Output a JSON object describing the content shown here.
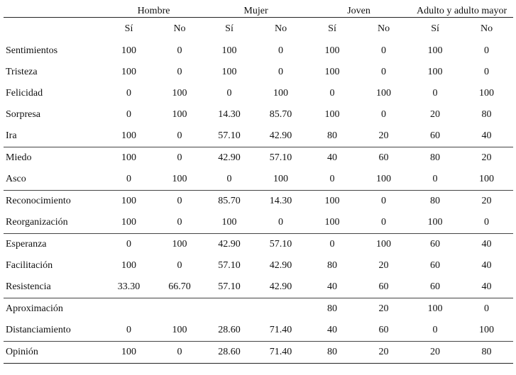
{
  "groups": [
    "Hombre",
    "Mujer",
    "Joven",
    "Adulto y adulto mayor"
  ],
  "subheaders": [
    "Sí",
    "No",
    "Sí",
    "No",
    "Sí",
    "No",
    "Sí",
    "No"
  ],
  "rows": [
    {
      "label": "Sentimientos",
      "values": [
        "100",
        "0",
        "100",
        "0",
        "100",
        "0",
        "100",
        "0"
      ]
    },
    {
      "label": "Tristeza",
      "values": [
        "100",
        "0",
        "100",
        "0",
        "100",
        "0",
        "100",
        "0"
      ]
    },
    {
      "label": "Felicidad",
      "values": [
        "0",
        "100",
        "0",
        "100",
        "0",
        "100",
        "0",
        "100"
      ]
    },
    {
      "label": "Sorpresa",
      "values": [
        "0",
        "100",
        "14.30",
        "85.70",
        "100",
        "0",
        "20",
        "80"
      ]
    },
    {
      "label": "Ira",
      "values": [
        "100",
        "0",
        "57.10",
        "42.90",
        "80",
        "20",
        "60",
        "40"
      ]
    },
    {
      "label": "Miedo",
      "values": [
        "100",
        "0",
        "42.90",
        "57.10",
        "40",
        "60",
        "80",
        "20"
      ]
    },
    {
      "label": "Asco",
      "values": [
        "0",
        "100",
        "0",
        "100",
        "0",
        "100",
        "0",
        "100"
      ]
    },
    {
      "label": "Reconocimiento",
      "values": [
        "100",
        "0",
        "85.70",
        "14.30",
        "100",
        "0",
        "80",
        "20"
      ]
    },
    {
      "label": "Reorganización",
      "values": [
        "100",
        "0",
        "100",
        "0",
        "100",
        "0",
        "100",
        "0"
      ]
    },
    {
      "label": "Esperanza",
      "values": [
        "0",
        "100",
        "42.90",
        "57.10",
        "0",
        "100",
        "60",
        "40"
      ]
    },
    {
      "label": "Facilitación",
      "values": [
        "100",
        "0",
        "57.10",
        "42.90",
        "80",
        "20",
        "60",
        "40"
      ]
    },
    {
      "label": "Resistencia",
      "values": [
        "33.30",
        "66.70",
        "57.10",
        "42.90",
        "40",
        "60",
        "60",
        "40"
      ]
    },
    {
      "label": "Aproximación",
      "values": [
        "",
        "",
        "",
        "",
        "80",
        "20",
        "100",
        "0"
      ]
    },
    {
      "label": "Distanciamiento",
      "values": [
        "0",
        "100",
        "28.60",
        "71.40",
        "40",
        "60",
        "0",
        "100"
      ]
    },
    {
      "label": "Opinión",
      "values": [
        "100",
        "0",
        "28.60",
        "71.40",
        "80",
        "20",
        "20",
        "80"
      ]
    }
  ]
}
